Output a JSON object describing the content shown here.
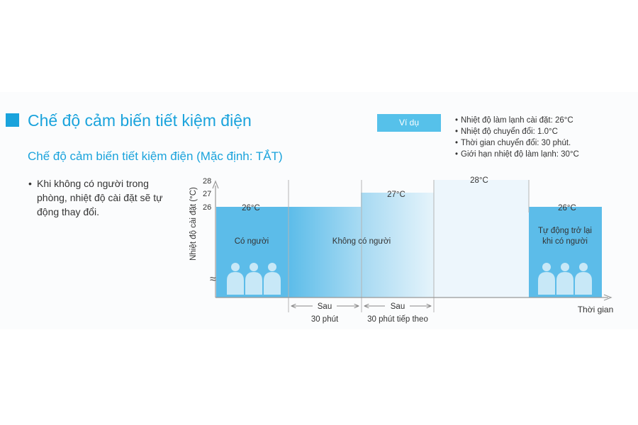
{
  "header": {
    "title": "Chế độ cảm biến tiết kiệm điện",
    "subtitle": "Chế độ cảm biến tiết kiệm điện (Mặc định: TẮT)",
    "bullet": "Khi không có người trong phòng, nhiệt độ cài đặt sẽ tự động thay đổi.",
    "bullet_symbol": "•"
  },
  "example": {
    "button_label": "Ví dụ",
    "notes": [
      "Nhiệt độ làm lạnh cài đặt: 26°C",
      "Nhiệt độ chuyển đổi: 1.0°C",
      "Thời gian chuyển đổi: 30 phút.",
      "Giới hạn nhiệt độ làm lạnh: 30°C"
    ]
  },
  "chart": {
    "ylabel": "Nhiệt độ cài đặt (°C)",
    "xlabel": "Thời gian",
    "y_ticks": [
      "28",
      "27",
      "26"
    ],
    "axis_break": "≈",
    "segments": [
      {
        "value_label": "26°C",
        "state_label": [
          "Có người"
        ]
      },
      {
        "value_label": "",
        "state_label": [
          "Không có người"
        ]
      },
      {
        "value_label": "27°C",
        "state_label": []
      },
      {
        "value_label": "28°C",
        "state_label": []
      },
      {
        "value_label": "26°C",
        "state_label": [
          "Tự động trở lại",
          "khi có người"
        ]
      }
    ],
    "intervals": [
      {
        "line1": "Sau",
        "line2": "30 phút"
      },
      {
        "line1": "Sau",
        "line2": "30 phút tiếp theo"
      }
    ]
  },
  "colors": {
    "accent": "#1aa3dc",
    "bar_strong": "#5cbce9",
    "bar_light": "#d9eef9",
    "button": "#56c1ea",
    "people": "#c8e8f7"
  }
}
